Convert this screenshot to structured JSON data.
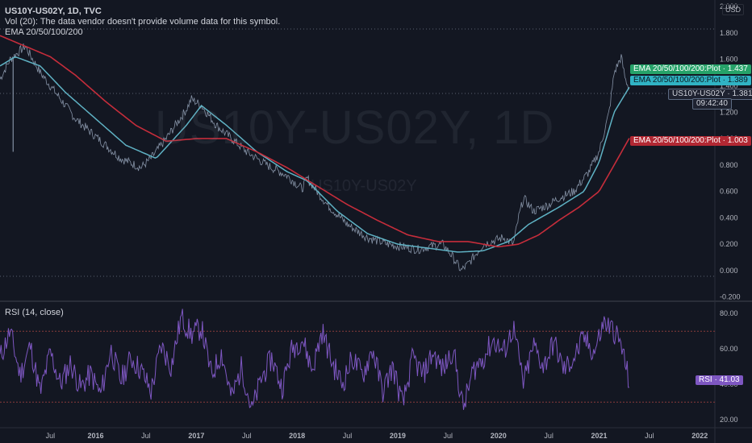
{
  "header": {
    "title": "US10Y-US02Y, 1D, TVC",
    "volume_note": "Vol (20): The data vendor doesn't provide volume data for this symbol.",
    "ema_label": "EMA 20/50/100/200",
    "currency_button": "USD"
  },
  "watermark": {
    "symbol": "US10Y-US02Y, 1D",
    "subtitle": "US10Y-US02Y"
  },
  "rsi_panel": {
    "label": "RSI (14, close)"
  },
  "price_tags": {
    "ema_green": "EMA 20/50/100/200:Plot · 1.437",
    "ema_teal": "EMA 20/50/100/200:Plot · 1.389",
    "last_price": "US10Y-US02Y · 1.381",
    "countdown": "09:42:40",
    "ema_red": "EMA 20/50/100/200:Plot · 1.003",
    "rsi": "RSI · 41.03"
  },
  "colors": {
    "background": "#131722",
    "price_line": "#9aa8bd",
    "ema_fast": "#5fb2c4",
    "ema_slow": "#c62d3b",
    "ema_green": "#26a269",
    "rsi_line": "#7e57c2",
    "rsi_band_line": "#8a3b3b"
  },
  "chart_data": [
    {
      "type": "line",
      "title": "US10Y-US02Y, 1D, TVC",
      "x_ticks": [
        "Jul",
        "2016",
        "Jul",
        "2017",
        "Jul",
        "2018",
        "Jul",
        "2019",
        "Jul",
        "2020",
        "Jul",
        "2021",
        "Jul",
        "2022"
      ],
      "y_ticks": [
        "2.000",
        "1.800",
        "1.600",
        "1.400",
        "1.200",
        "1.000",
        "0.800",
        "0.600",
        "0.400",
        "0.200",
        "0.000",
        "-0.200"
      ],
      "ylim": [
        -0.22,
        2.05
      ],
      "series": [
        {
          "name": "US10Y-US02Y",
          "x": [
            2015.05,
            2015.15,
            2015.3,
            2015.45,
            2015.55,
            2015.65,
            2015.8,
            2015.95,
            2016.1,
            2016.25,
            2016.45,
            2016.55,
            2016.7,
            2016.9,
            2016.95,
            2017.05,
            2017.2,
            2017.35,
            2017.5,
            2017.7,
            2017.9,
            2018.05,
            2018.1,
            2018.3,
            2018.5,
            2018.7,
            2018.9,
            2019.05,
            2019.2,
            2019.3,
            2019.45,
            2019.55,
            2019.63,
            2019.7,
            2019.85,
            2020.05,
            2020.15,
            2020.2,
            2020.25,
            2020.35,
            2020.5,
            2020.6,
            2020.75,
            2020.9,
            2021.0,
            2021.1,
            2021.15,
            2021.22,
            2021.26,
            2021.3
          ],
          "values": [
            1.45,
            1.6,
            1.7,
            1.5,
            1.4,
            1.3,
            1.15,
            1.05,
            0.95,
            0.85,
            0.78,
            0.85,
            1.0,
            1.22,
            1.3,
            1.25,
            1.1,
            1.0,
            0.9,
            0.8,
            0.72,
            0.62,
            0.7,
            0.5,
            0.35,
            0.25,
            0.2,
            0.18,
            0.16,
            0.18,
            0.2,
            0.1,
            0.0,
            0.05,
            0.2,
            0.25,
            0.2,
            0.4,
            0.55,
            0.45,
            0.5,
            0.55,
            0.6,
            0.75,
            0.9,
            1.2,
            1.5,
            1.62,
            1.45,
            1.38
          ]
        },
        {
          "name": "EMA 20/50/100/200:Plot",
          "x": [
            2015.05,
            2015.2,
            2015.45,
            2015.7,
            2016.0,
            2016.3,
            2016.6,
            2016.9,
            2017.05,
            2017.3,
            2017.6,
            2017.9,
            2018.1,
            2018.4,
            2018.7,
            2019.0,
            2019.3,
            2019.6,
            2019.85,
            2020.1,
            2020.3,
            2020.6,
            2020.85,
            2021.0,
            2021.15,
            2021.3
          ],
          "values": [
            1.55,
            1.62,
            1.55,
            1.35,
            1.15,
            0.95,
            0.85,
            1.1,
            1.25,
            1.1,
            0.9,
            0.75,
            0.68,
            0.45,
            0.28,
            0.2,
            0.17,
            0.14,
            0.15,
            0.22,
            0.35,
            0.48,
            0.6,
            0.82,
            1.2,
            1.389
          ]
        },
        {
          "name": "EMA 20/50/100/200:Plot",
          "x": [
            2015.05,
            2015.3,
            2015.55,
            2015.8,
            2016.1,
            2016.4,
            2016.7,
            2017.0,
            2017.3,
            2017.6,
            2017.9,
            2018.2,
            2018.5,
            2018.8,
            2019.1,
            2019.4,
            2019.7,
            2020.0,
            2020.2,
            2020.4,
            2020.6,
            2020.8,
            2021.0,
            2021.15,
            2021.3
          ],
          "values": [
            1.78,
            1.7,
            1.62,
            1.48,
            1.28,
            1.1,
            0.98,
            1.0,
            1.0,
            0.9,
            0.78,
            0.64,
            0.5,
            0.38,
            0.27,
            0.22,
            0.22,
            0.18,
            0.2,
            0.27,
            0.38,
            0.48,
            0.6,
            0.8,
            1.003
          ]
        }
      ]
    },
    {
      "type": "line",
      "title": "RSI (14, close)",
      "y_ticks": [
        "80.00",
        "60.00",
        "40.00",
        "20.00"
      ],
      "ylim": [
        16,
        86
      ],
      "bands": [
        70,
        30
      ],
      "series": [
        {
          "name": "RSI",
          "x": [
            2015.05,
            2015.15,
            2015.25,
            2015.35,
            2015.45,
            2015.55,
            2015.65,
            2015.75,
            2015.85,
            2015.95,
            2016.05,
            2016.15,
            2016.25,
            2016.35,
            2016.45,
            2016.55,
            2016.65,
            2016.75,
            2016.85,
            2016.95,
            2017.05,
            2017.15,
            2017.25,
            2017.35,
            2017.45,
            2017.55,
            2017.65,
            2017.75,
            2017.85,
            2017.95,
            2018.05,
            2018.15,
            2018.25,
            2018.35,
            2018.45,
            2018.55,
            2018.65,
            2018.75,
            2018.85,
            2018.95,
            2019.05,
            2019.15,
            2019.25,
            2019.35,
            2019.45,
            2019.55,
            2019.65,
            2019.75,
            2019.85,
            2019.95,
            2020.05,
            2020.15,
            2020.25,
            2020.35,
            2020.45,
            2020.55,
            2020.65,
            2020.75,
            2020.85,
            2020.95,
            2021.05,
            2021.15,
            2021.22,
            2021.3
          ],
          "values": [
            55,
            70,
            45,
            62,
            35,
            58,
            40,
            52,
            38,
            46,
            34,
            60,
            42,
            55,
            48,
            36,
            62,
            50,
            78,
            68,
            72,
            45,
            58,
            32,
            50,
            25,
            44,
            55,
            38,
            60,
            66,
            48,
            70,
            52,
            40,
            55,
            45,
            60,
            36,
            50,
            28,
            55,
            45,
            58,
            48,
            60,
            26,
            48,
            55,
            65,
            58,
            72,
            40,
            62,
            50,
            64,
            48,
            55,
            66,
            58,
            75,
            70,
            62,
            41
          ]
        }
      ]
    }
  ]
}
